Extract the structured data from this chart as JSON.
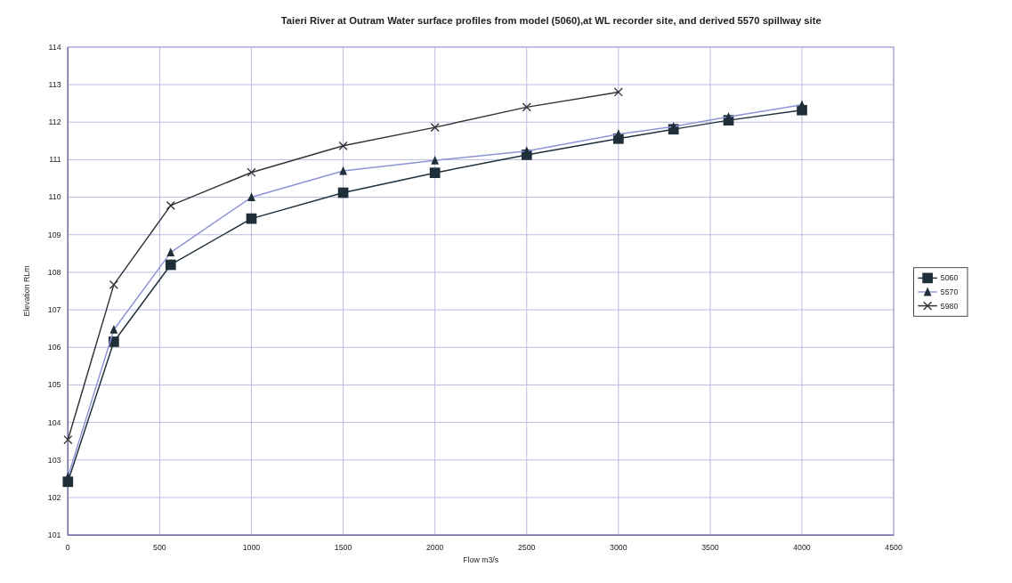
{
  "chart_data": {
    "type": "line",
    "title": "Taieri River at Outram Water surface profiles from model (5060),at WL recorder site, and derived 5570 spillway site",
    "xlabel": "Flow m3/s",
    "ylabel": "Elevation RLm",
    "xlim": [
      0,
      4500
    ],
    "xticks": [
      0,
      500,
      1000,
      1500,
      2000,
      2500,
      3000,
      3500,
      4000,
      4500
    ],
    "ylim": [
      101,
      114
    ],
    "yticks": [
      101,
      102,
      103,
      104,
      105,
      106,
      107,
      108,
      109,
      110,
      111,
      112,
      113,
      114
    ],
    "grid": true,
    "legend": "right",
    "series": [
      {
        "name": "5060",
        "color": "#1f2f3a",
        "marker": "square",
        "x": [
          0,
          250,
          560,
          1000,
          1500,
          2000,
          2500,
          3000,
          3300,
          3600,
          4000
        ],
        "values": [
          102.42,
          106.15,
          108.2,
          109.43,
          110.12,
          110.65,
          111.13,
          111.56,
          111.81,
          112.05,
          112.32
        ]
      },
      {
        "name": "5570",
        "color": "#8f93d6",
        "marker": "triangle",
        "x": [
          0,
          250,
          560,
          1000,
          1500,
          2000,
          2500,
          3000,
          3300,
          3600,
          4000
        ],
        "values": [
          102.55,
          106.47,
          108.53,
          110.0,
          110.7,
          110.98,
          111.23,
          111.68,
          111.88,
          112.14,
          112.46
        ]
      },
      {
        "name": "5980",
        "color": "#333333",
        "marker": "cross",
        "x": [
          0,
          250,
          560,
          1000,
          1500,
          2000,
          2500,
          3000
        ],
        "values": [
          103.54,
          107.67,
          109.78,
          110.66,
          111.37,
          111.86,
          112.4,
          112.8
        ]
      }
    ]
  }
}
